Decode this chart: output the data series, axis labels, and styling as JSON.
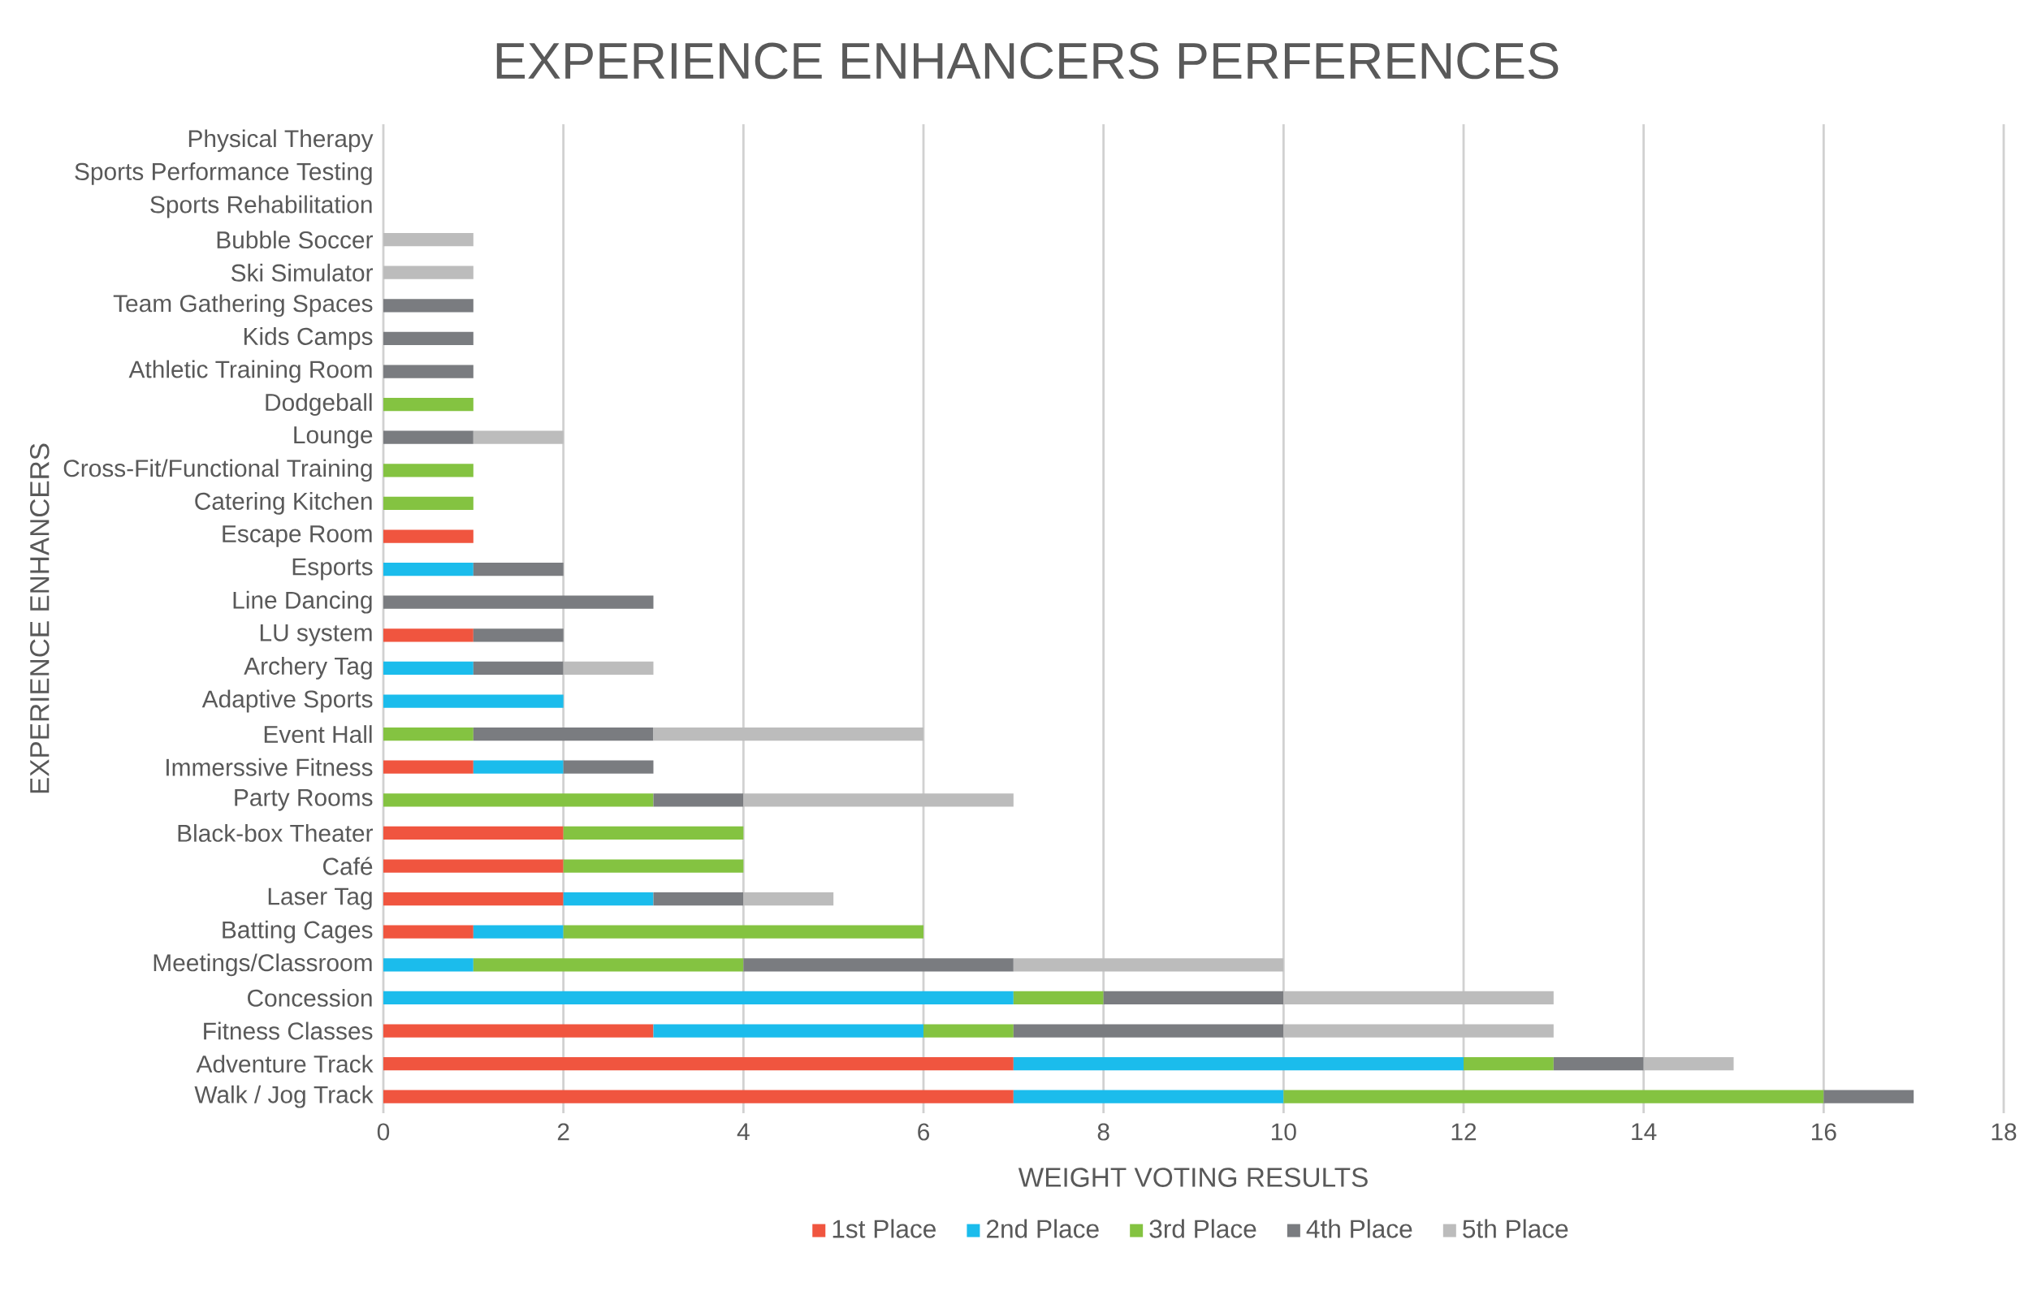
{
  "chart_data": {
    "type": "bar",
    "orientation": "horizontal",
    "stacked": true,
    "title": "EXPERIENCE ENHANCERS PERFERENCES",
    "xlabel": "WEIGHT VOTING RESULTS",
    "ylabel": "EXPERIENCE ENHANCERS",
    "categories": [
      "Physical Therapy",
      "Sports Performance Testing",
      "Sports Rehabilitation",
      "Bubble Soccer",
      "Ski Simulator",
      "Team Gathering Spaces",
      "Kids Camps",
      "Athletic Training Room",
      "Dodgeball",
      "Lounge",
      "Cross-Fit/Functional Training",
      "Catering Kitchen",
      "Escape Room",
      "Esports",
      "Line Dancing",
      "LU system",
      "Archery Tag",
      "Adaptive Sports",
      "Event Hall",
      "Immerssive Fitness",
      "Party Rooms",
      "Black-box Theater",
      "Café",
      "Laser Tag",
      "Batting Cages",
      "Meetings/Classroom",
      "Concession",
      "Fitness Classes",
      "Adventure Track",
      "Walk / Jog Track"
    ],
    "series": [
      {
        "name": "1st Place",
        "color": "#f0553f",
        "values": [
          null,
          null,
          null,
          null,
          null,
          null,
          null,
          null,
          null,
          null,
          null,
          null,
          1,
          null,
          null,
          1,
          null,
          null,
          null,
          1,
          null,
          2,
          2,
          2,
          1,
          null,
          null,
          3,
          7,
          7
        ]
      },
      {
        "name": "2nd Place",
        "color": "#1bbcec",
        "values": [
          null,
          null,
          null,
          null,
          null,
          null,
          null,
          null,
          null,
          null,
          null,
          null,
          null,
          1,
          null,
          null,
          1,
          2,
          null,
          1,
          null,
          null,
          null,
          1,
          1,
          1,
          7,
          3,
          5,
          3
        ]
      },
      {
        "name": "3rd Place",
        "color": "#84c341",
        "values": [
          null,
          null,
          null,
          null,
          null,
          null,
          null,
          null,
          1,
          null,
          1,
          1,
          null,
          null,
          null,
          null,
          null,
          null,
          1,
          null,
          3,
          2,
          2,
          null,
          4,
          3,
          1,
          1,
          1,
          6
        ]
      },
      {
        "name": "4th Place",
        "color": "#7a7c80",
        "values": [
          null,
          null,
          null,
          null,
          null,
          1,
          1,
          1,
          null,
          1,
          null,
          null,
          null,
          1,
          3,
          1,
          1,
          null,
          2,
          1,
          1,
          null,
          null,
          1,
          null,
          3,
          2,
          3,
          1,
          1
        ]
      },
      {
        "name": "5th Place",
        "color": "#bcbcbc",
        "values": [
          null,
          null,
          null,
          1,
          1,
          null,
          null,
          null,
          null,
          1,
          null,
          null,
          null,
          null,
          null,
          null,
          1,
          null,
          3,
          null,
          3,
          null,
          null,
          1,
          null,
          3,
          3,
          3,
          1,
          null
        ]
      }
    ],
    "xlim": [
      0,
      18
    ],
    "xticks": [
      0,
      2,
      4,
      6,
      8,
      10,
      12,
      14,
      16,
      18
    ],
    "grid": "x",
    "legend": "bottom"
  }
}
